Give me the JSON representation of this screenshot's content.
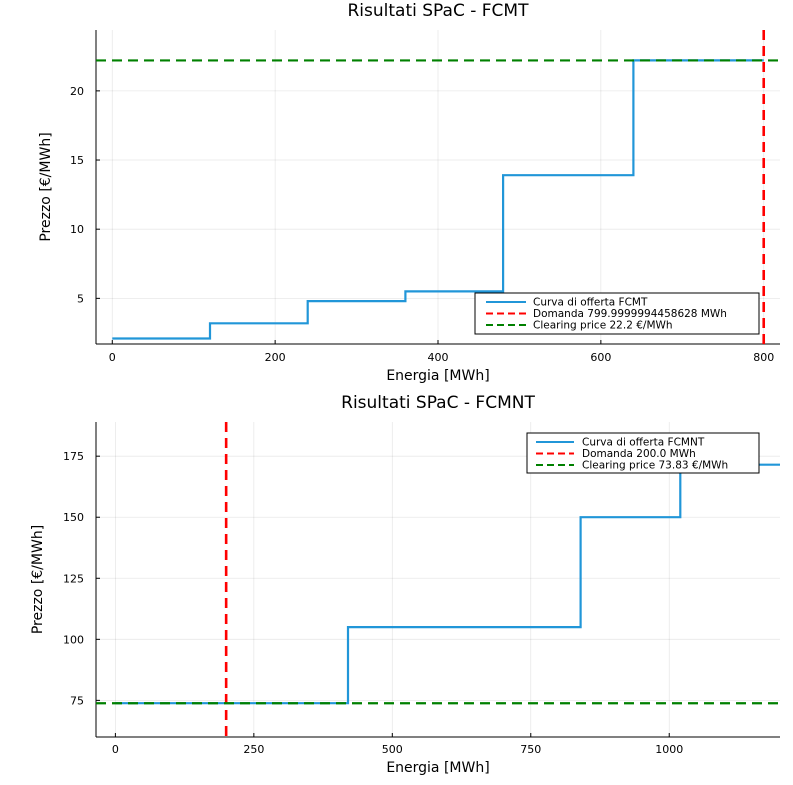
{
  "chart_data": [
    {
      "type": "line",
      "title": "Risultati SPaC - FCMT",
      "xlabel": "Energia [MWh]",
      "ylabel": "Prezzo [€/MWh]",
      "xlim": [
        -20,
        820
      ],
      "ylim": [
        1.7,
        24.4
      ],
      "xticks": [
        0,
        200,
        400,
        600,
        800
      ],
      "yticks": [
        5,
        10,
        15,
        20
      ],
      "grid": true,
      "legend_position": "bottom-right",
      "series": [
        {
          "name": "Curva di offerta FCMT",
          "kind": "step",
          "color": "#2196d8",
          "x": [
            0,
            120,
            120,
            240,
            240,
            360,
            360,
            480,
            480,
            640,
            640,
            800
          ],
          "y": [
            2.1,
            2.1,
            3.2,
            3.2,
            4.8,
            4.8,
            5.5,
            5.5,
            13.9,
            13.9,
            22.2,
            22.2
          ]
        },
        {
          "name": "Domanda 799.9999994458628 MWh",
          "kind": "vline",
          "color": "#ff0000",
          "x": 799.9999994458628
        },
        {
          "name": "Clearing price 22.2 €/MWh",
          "kind": "hline",
          "color": "#008000",
          "y": 22.2
        }
      ]
    },
    {
      "type": "line",
      "title": "Risultati SPaC - FCMNT",
      "xlabel": "Energia [MWh]",
      "ylabel": "Prezzo [€/MWh]",
      "xlim": [
        -35,
        1200
      ],
      "ylim": [
        60,
        189
      ],
      "xticks": [
        0,
        250,
        500,
        750,
        1000
      ],
      "yticks": [
        75,
        100,
        125,
        150,
        175
      ],
      "grid": true,
      "legend_position": "top-right",
      "series": [
        {
          "name": "Curva di offerta FCMNT",
          "kind": "step",
          "color": "#2196d8",
          "x": [
            0,
            420,
            420,
            840,
            840,
            1020,
            1020,
            1200
          ],
          "y": [
            73.83,
            73.83,
            105,
            105,
            150,
            150,
            171.5,
            171.5
          ]
        },
        {
          "name": "Domanda 200.0 MWh",
          "kind": "vline",
          "color": "#ff0000",
          "x": 200.0
        },
        {
          "name": "Clearing price 73.83 €/MWh",
          "kind": "hline",
          "color": "#008000",
          "y": 73.83
        }
      ]
    }
  ]
}
